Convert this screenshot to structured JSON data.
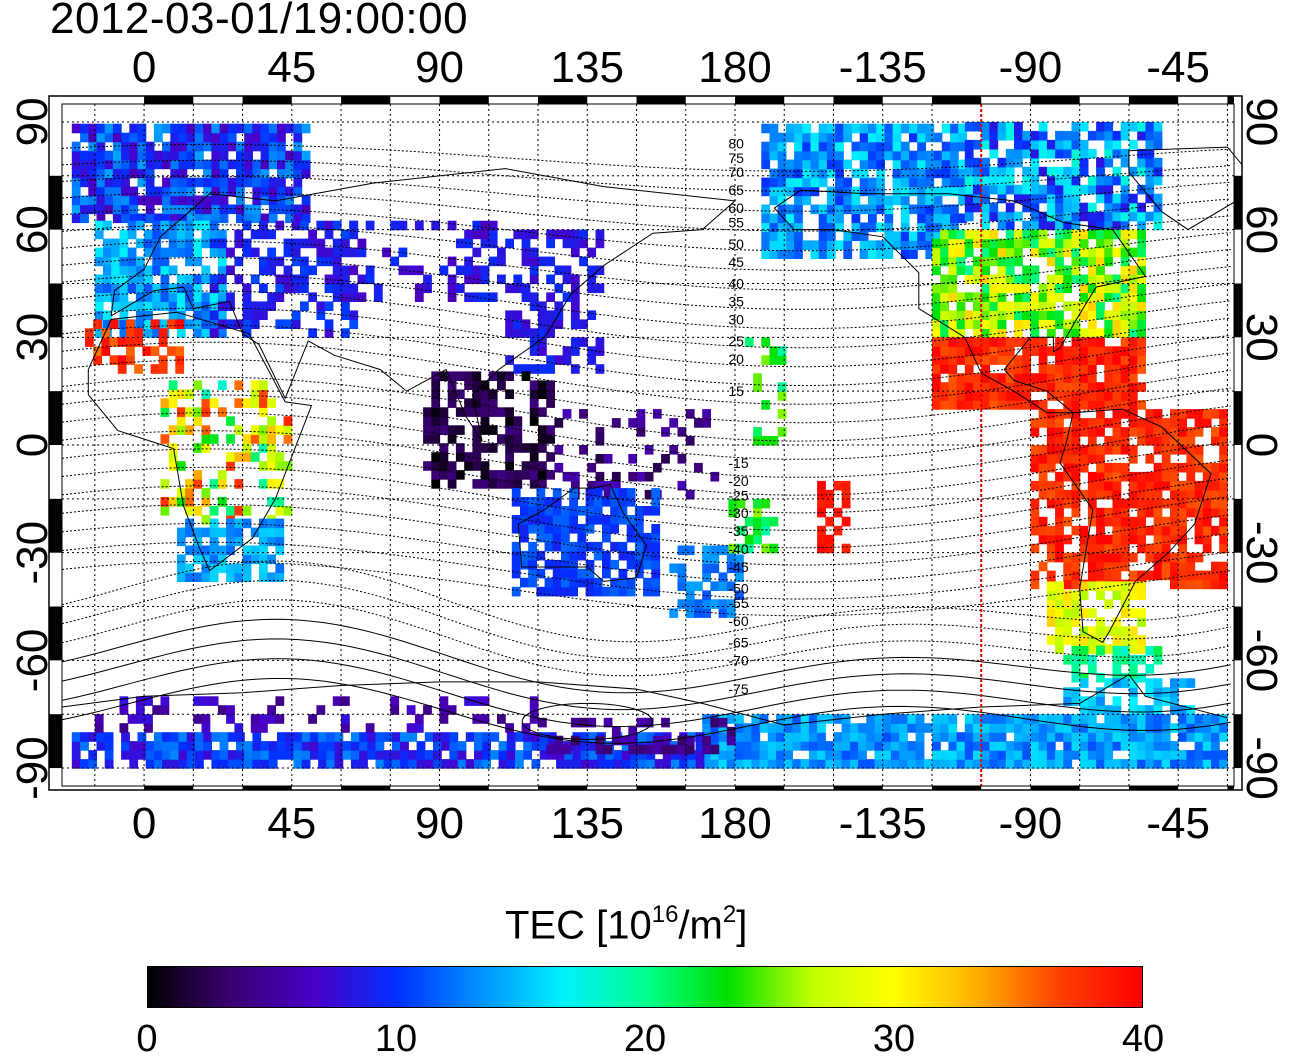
{
  "title": "2012-03-01/19:00:00",
  "map": {
    "lon_ticks_top": [
      "0",
      "45",
      "90",
      "135",
      "180",
      "-135",
      "-90",
      "-45"
    ],
    "lon_ticks_bottom": [
      "0",
      "45",
      "90",
      "135",
      "180",
      "-135",
      "-90",
      "-45"
    ],
    "lat_ticks_left": [
      "90",
      "60",
      "30",
      "0",
      "-30",
      "-60",
      "-90"
    ],
    "lat_ticks_right": [
      "90",
      "60",
      "30",
      "0",
      "-30",
      "-60",
      "-90"
    ],
    "lon_range": [
      -25,
      332
    ],
    "lat_range": [
      -95,
      95
    ],
    "subsolar_meridian_lon": -105,
    "subsolar_meridian_color": "#e00000",
    "contour_labels": [
      "80",
      "75",
      "70",
      "65",
      "60",
      "55",
      "50",
      "45",
      "40",
      "35",
      "30",
      "25",
      "20",
      "15",
      "-15",
      "-20",
      "-25",
      "-30",
      "-35",
      "-40",
      "-45",
      "-50",
      "-55",
      "-60",
      "-65",
      "-70",
      "-75"
    ],
    "description_colors": {
      "land_outline": "#000000",
      "grid": "#000000"
    }
  },
  "colorbar": {
    "label_main": "TEC  [10",
    "label_exp1": "16",
    "label_mid": "/m",
    "label_exp2": "2",
    "label_end": "]",
    "min": 0,
    "max": 40,
    "ticks": [
      "0",
      "10",
      "20",
      "30",
      "40"
    ],
    "colors": [
      "#000000",
      "#3a0070",
      "#4b00c8",
      "#0030ff",
      "#0090ff",
      "#00f0ff",
      "#00ff90",
      "#00e000",
      "#c0ff00",
      "#ffff00",
      "#ffb000",
      "#ff4000",
      "#ff0000"
    ]
  }
}
